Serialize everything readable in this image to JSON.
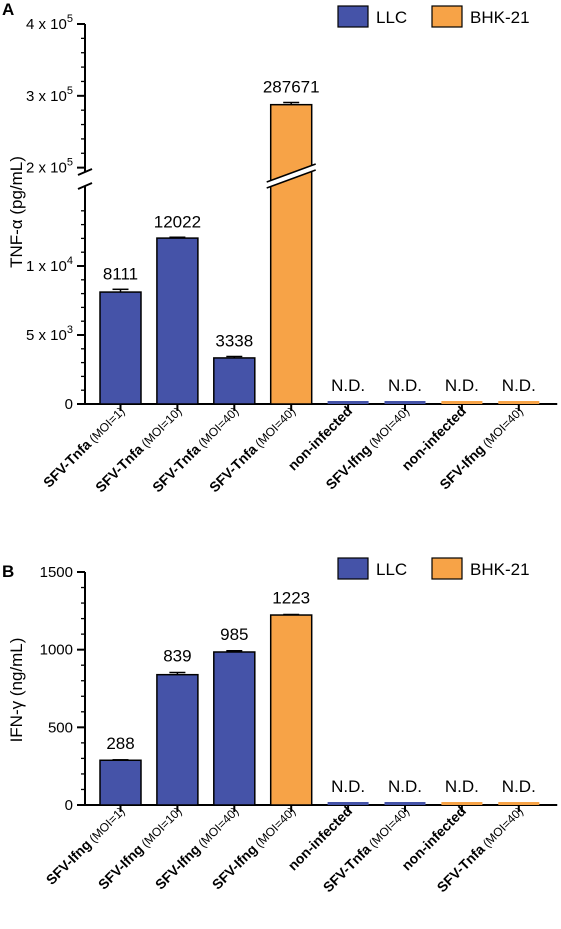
{
  "chart_data": [
    {
      "panel": "A",
      "type": "bar",
      "ylabel": "TNF-α (pg/mL)",
      "y_scale": "broken",
      "y_break": [
        15000,
        180000
      ],
      "ylim_lower": [
        0,
        15000
      ],
      "ylim_upper": [
        180000,
        400000
      ],
      "yticks": [
        {
          "value": 0,
          "label": "0"
        },
        {
          "value": 5000,
          "label": "5 x 10",
          "exp": "3"
        },
        {
          "value": 10000,
          "label": "1 x 10",
          "exp": "4"
        },
        {
          "value": 200000,
          "label": "2 x 10",
          "exp": "5"
        },
        {
          "value": 300000,
          "label": "3 x 10",
          "exp": "5"
        },
        {
          "value": 400000,
          "label": "4 x 10",
          "exp": "5"
        }
      ],
      "legend": [
        {
          "name": "LLC",
          "color": "#4553a8"
        },
        {
          "name": "BHK-21",
          "color": "#f7a347"
        }
      ],
      "legend_position": "top-right",
      "categories": [
        {
          "main": "SFV-Tnfa",
          "sub": "(MOI=1)"
        },
        {
          "main": "SFV-Tnfa",
          "sub": "(MOI=10)"
        },
        {
          "main": "SFV-Tnfa",
          "sub": "(MOI=40)"
        },
        {
          "main": "SFV-Tnfa",
          "sub": "(MOI=40)"
        },
        {
          "main": "non-infected",
          "sub": ""
        },
        {
          "main": "SFV-Ifng",
          "sub": "(MOI=40)"
        },
        {
          "main": "non-infected",
          "sub": ""
        },
        {
          "main": "SFV-Ifng",
          "sub": "(MOI=40)"
        }
      ],
      "cell_line": [
        "LLC",
        "LLC",
        "LLC",
        "BHK-21",
        "LLC",
        "LLC",
        "BHK-21",
        "BHK-21"
      ],
      "values": [
        8111,
        12022,
        3338,
        287671,
        0,
        0,
        0,
        0
      ],
      "errors": [
        200,
        60,
        100,
        3000,
        0,
        0,
        0,
        0
      ],
      "data_labels": [
        "8111",
        "12022",
        "3338",
        "287671",
        "N.D.",
        "N.D.",
        "N.D.",
        "N.D."
      ]
    },
    {
      "panel": "B",
      "type": "bar",
      "ylabel": "IFN-γ (ng/mL)",
      "ylim": [
        0,
        1500
      ],
      "yticks": [
        {
          "value": 0,
          "label": "0"
        },
        {
          "value": 500,
          "label": "500"
        },
        {
          "value": 1000,
          "label": "1000"
        },
        {
          "value": 1500,
          "label": "1500"
        }
      ],
      "legend": [
        {
          "name": "LLC",
          "color": "#4553a8"
        },
        {
          "name": "BHK-21",
          "color": "#f7a347"
        }
      ],
      "legend_position": "top-right",
      "categories": [
        {
          "main": "SFV-Ifng",
          "sub": "(MOI=1)"
        },
        {
          "main": "SFV-Ifng",
          "sub": "(MOI=10)"
        },
        {
          "main": "SFV-Ifng",
          "sub": "(MOI=40)"
        },
        {
          "main": "SFV-Ifng",
          "sub": "(MOI=40)"
        },
        {
          "main": "non-infected",
          "sub": ""
        },
        {
          "main": "SFV-Tnfa",
          "sub": "(MOI=40)"
        },
        {
          "main": "non-infected",
          "sub": ""
        },
        {
          "main": "SFV-Tnfa",
          "sub": "(MOI=40)"
        }
      ],
      "cell_line": [
        "LLC",
        "LLC",
        "LLC",
        "BHK-21",
        "LLC",
        "LLC",
        "BHK-21",
        "BHK-21"
      ],
      "values": [
        288,
        839,
        985,
        1223,
        0,
        0,
        0,
        0
      ],
      "errors": [
        3,
        14,
        8,
        3,
        0,
        0,
        0,
        0
      ],
      "data_labels": [
        "288",
        "839",
        "985",
        "1223",
        "N.D.",
        "N.D.",
        "N.D.",
        "N.D."
      ]
    }
  ]
}
